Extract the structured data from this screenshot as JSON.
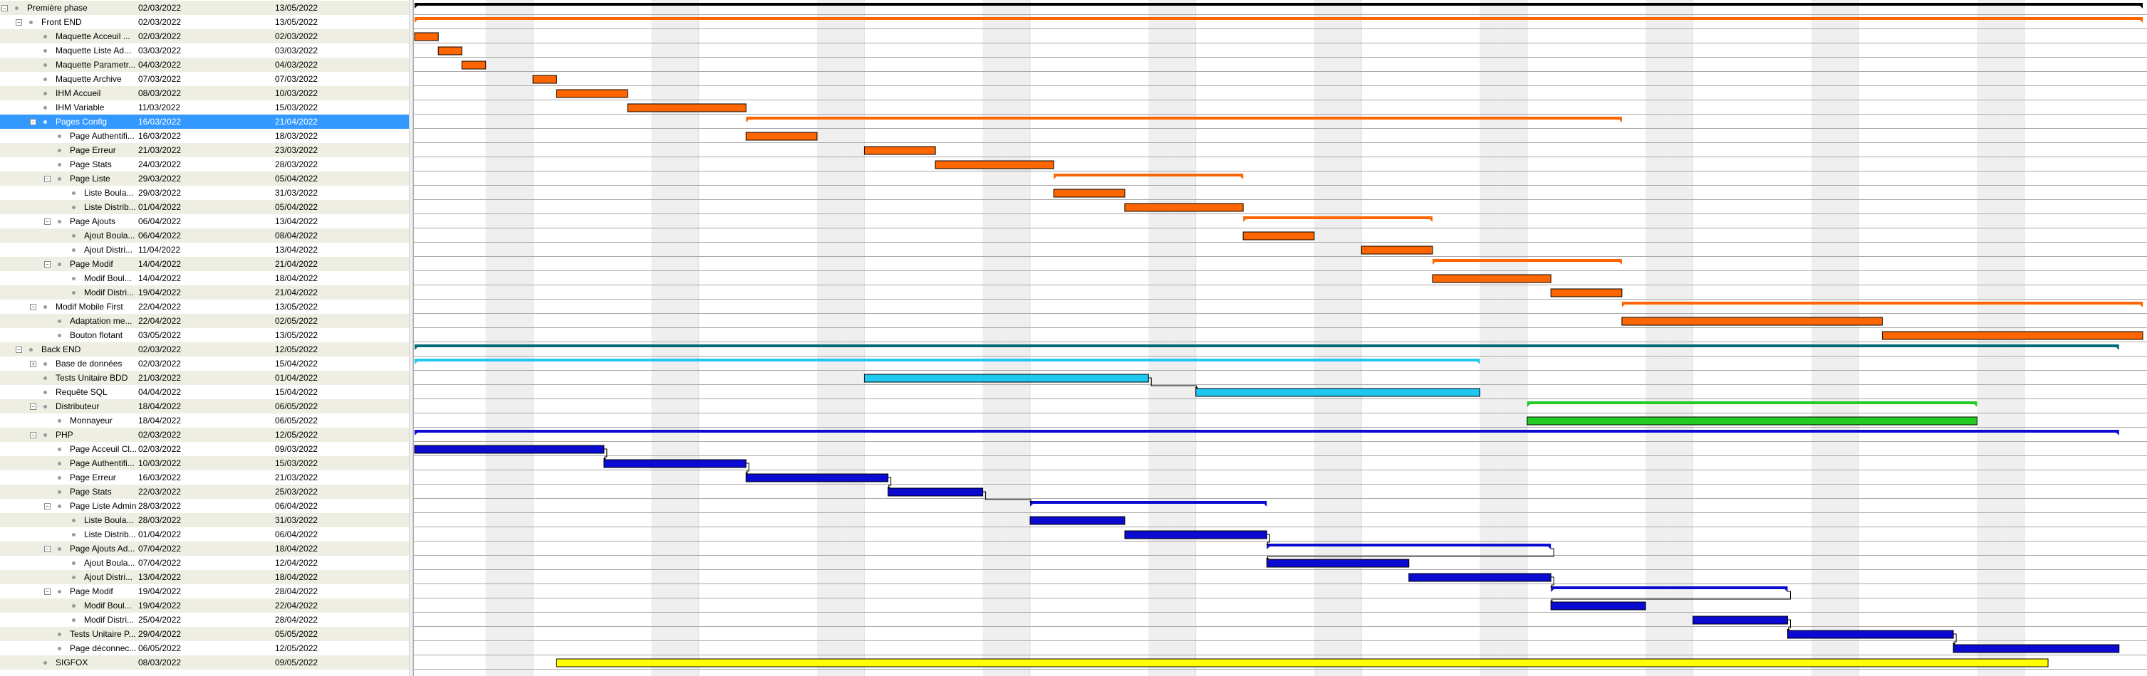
{
  "chart_data": {
    "type": "gantt",
    "timeline": {
      "start": "2022-03-02",
      "end": "2022-05-13"
    },
    "colors": {
      "frontend": "#ff6600",
      "backend_summary": "#006b75",
      "database": "#1ec8f0",
      "distributeur": "#22cc22",
      "php": "#0a0ad0",
      "sigfox": "#ffff00",
      "project_summary": "#000000",
      "selection": "#3399ff"
    },
    "tasks": [
      {
        "name": "Première phase",
        "start": "02/03/2022",
        "end": "13/05/2022",
        "level": 0,
        "toggle": "-",
        "type": "summary",
        "color": "project_summary"
      },
      {
        "name": "Front END",
        "start": "02/03/2022",
        "end": "13/05/2022",
        "level": 1,
        "toggle": "-",
        "type": "summary",
        "color": "frontend"
      },
      {
        "name": "Maquette Acceuil ...",
        "start": "02/03/2022",
        "end": "02/03/2022",
        "level": 2,
        "type": "task",
        "color": "frontend"
      },
      {
        "name": "Maquette Liste Ad...",
        "start": "03/03/2022",
        "end": "03/03/2022",
        "level": 2,
        "type": "task",
        "color": "frontend"
      },
      {
        "name": "Maquette Parametr...",
        "start": "04/03/2022",
        "end": "04/03/2022",
        "level": 2,
        "type": "task",
        "color": "frontend"
      },
      {
        "name": "Maquette Archive",
        "start": "07/03/2022",
        "end": "07/03/2022",
        "level": 2,
        "type": "task",
        "color": "frontend"
      },
      {
        "name": "IHM Accueil",
        "start": "08/03/2022",
        "end": "10/03/2022",
        "level": 2,
        "type": "task",
        "color": "frontend"
      },
      {
        "name": "IHM Variable",
        "start": "11/03/2022",
        "end": "15/03/2022",
        "level": 2,
        "type": "task",
        "color": "frontend"
      },
      {
        "name": "Pages Config",
        "start": "16/03/2022",
        "end": "21/04/2022",
        "level": 2,
        "toggle": "-",
        "type": "summary",
        "color": "frontend",
        "selected": true
      },
      {
        "name": "Page Authentifi...",
        "start": "16/03/2022",
        "end": "18/03/2022",
        "level": 3,
        "type": "task",
        "color": "frontend"
      },
      {
        "name": "Page Erreur",
        "start": "21/03/2022",
        "end": "23/03/2022",
        "level": 3,
        "type": "task",
        "color": "frontend"
      },
      {
        "name": "Page Stats",
        "start": "24/03/2022",
        "end": "28/03/2022",
        "level": 3,
        "type": "task",
        "color": "frontend"
      },
      {
        "name": "Page Liste",
        "start": "29/03/2022",
        "end": "05/04/2022",
        "level": 3,
        "toggle": "-",
        "type": "summary",
        "color": "frontend"
      },
      {
        "name": "Liste Boula...",
        "start": "29/03/2022",
        "end": "31/03/2022",
        "level": 4,
        "type": "task",
        "color": "frontend"
      },
      {
        "name": "Liste Distrib...",
        "start": "01/04/2022",
        "end": "05/04/2022",
        "level": 4,
        "type": "task",
        "color": "frontend"
      },
      {
        "name": "Page Ajouts",
        "start": "06/04/2022",
        "end": "13/04/2022",
        "level": 3,
        "toggle": "-",
        "type": "summary",
        "color": "frontend"
      },
      {
        "name": "Ajout Boula...",
        "start": "06/04/2022",
        "end": "08/04/2022",
        "level": 4,
        "type": "task",
        "color": "frontend"
      },
      {
        "name": "Ajout Distri...",
        "start": "11/04/2022",
        "end": "13/04/2022",
        "level": 4,
        "type": "task",
        "color": "frontend"
      },
      {
        "name": "Page Modif",
        "start": "14/04/2022",
        "end": "21/04/2022",
        "level": 3,
        "toggle": "-",
        "type": "summary",
        "color": "frontend"
      },
      {
        "name": "Modif Boul...",
        "start": "14/04/2022",
        "end": "18/04/2022",
        "level": 4,
        "type": "task",
        "color": "frontend"
      },
      {
        "name": "Modif Distri...",
        "start": "19/04/2022",
        "end": "21/04/2022",
        "level": 4,
        "type": "task",
        "color": "frontend"
      },
      {
        "name": "Modif Mobile First",
        "start": "22/04/2022",
        "end": "13/05/2022",
        "level": 2,
        "toggle": "-",
        "type": "summary",
        "color": "frontend"
      },
      {
        "name": "Adaptation me...",
        "start": "22/04/2022",
        "end": "02/05/2022",
        "level": 3,
        "type": "task",
        "color": "frontend"
      },
      {
        "name": "Bouton flotant",
        "start": "03/05/2022",
        "end": "13/05/2022",
        "level": 3,
        "type": "task",
        "color": "frontend"
      },
      {
        "name": "Back END",
        "start": "02/03/2022",
        "end": "12/05/2022",
        "level": 1,
        "toggle": "-",
        "type": "summary",
        "color": "backend_summary"
      },
      {
        "name": "Base de données",
        "start": "02/03/2022",
        "end": "15/04/2022",
        "level": 2,
        "toggle": "+",
        "type": "summary",
        "color": "database"
      },
      {
        "name": "Tests Unitaire BDD",
        "start": "21/03/2022",
        "end": "01/04/2022",
        "level": 2,
        "type": "task",
        "color": "database"
      },
      {
        "name": "Requête SQL",
        "start": "04/04/2022",
        "end": "15/04/2022",
        "level": 2,
        "type": "task",
        "color": "database"
      },
      {
        "name": "Distributeur",
        "start": "18/04/2022",
        "end": "06/05/2022",
        "level": 2,
        "toggle": "-",
        "type": "summary",
        "color": "distributeur"
      },
      {
        "name": "Monnayeur",
        "start": "18/04/2022",
        "end": "06/05/2022",
        "level": 3,
        "type": "task",
        "color": "distributeur"
      },
      {
        "name": "PHP",
        "start": "02/03/2022",
        "end": "12/05/2022",
        "level": 2,
        "toggle": "-",
        "type": "summary",
        "color": "php"
      },
      {
        "name": "Page Acceuil Cl...",
        "start": "02/03/2022",
        "end": "09/03/2022",
        "level": 3,
        "type": "task",
        "color": "php"
      },
      {
        "name": "Page Authentifi...",
        "start": "10/03/2022",
        "end": "15/03/2022",
        "level": 3,
        "type": "task",
        "color": "php"
      },
      {
        "name": "Page Erreur",
        "start": "16/03/2022",
        "end": "21/03/2022",
        "level": 3,
        "type": "task",
        "color": "php"
      },
      {
        "name": "Page Stats",
        "start": "22/03/2022",
        "end": "25/03/2022",
        "level": 3,
        "type": "task",
        "color": "php"
      },
      {
        "name": "Page Liste Admin",
        "start": "28/03/2022",
        "end": "06/04/2022",
        "level": 3,
        "toggle": "-",
        "type": "summary",
        "color": "php"
      },
      {
        "name": "Liste Boula...",
        "start": "28/03/2022",
        "end": "31/03/2022",
        "level": 4,
        "type": "task",
        "color": "php"
      },
      {
        "name": "Liste Distrib...",
        "start": "01/04/2022",
        "end": "06/04/2022",
        "level": 4,
        "type": "task",
        "color": "php"
      },
      {
        "name": "Page Ajouts Ad...",
        "start": "07/04/2022",
        "end": "18/04/2022",
        "level": 3,
        "toggle": "-",
        "type": "summary",
        "color": "php"
      },
      {
        "name": "Ajout Boula...",
        "start": "07/04/2022",
        "end": "12/04/2022",
        "level": 4,
        "type": "task",
        "color": "php"
      },
      {
        "name": "Ajout Distri...",
        "start": "13/04/2022",
        "end": "18/04/2022",
        "level": 4,
        "type": "task",
        "color": "php"
      },
      {
        "name": "Page Modif",
        "start": "19/04/2022",
        "end": "28/04/2022",
        "level": 3,
        "toggle": "-",
        "type": "summary",
        "color": "php"
      },
      {
        "name": "Modif Boul...",
        "start": "19/04/2022",
        "end": "22/04/2022",
        "level": 4,
        "type": "task",
        "color": "php"
      },
      {
        "name": "Modif Distri...",
        "start": "25/04/2022",
        "end": "28/04/2022",
        "level": 4,
        "type": "task",
        "color": "php"
      },
      {
        "name": "Tests Unitaire P...",
        "start": "29/04/2022",
        "end": "05/05/2022",
        "level": 3,
        "type": "task",
        "color": "php"
      },
      {
        "name": "Page déconnec...",
        "start": "06/05/2022",
        "end": "12/05/2022",
        "level": 3,
        "type": "task",
        "color": "php"
      },
      {
        "name": "SIGFOX",
        "start": "08/03/2022",
        "end": "09/05/2022",
        "level": 2,
        "type": "task",
        "color": "sigfox"
      }
    ],
    "dependencies": [
      [
        "Tests Unitaire BDD",
        "Requête SQL"
      ],
      [
        31,
        32
      ],
      [
        32,
        33
      ],
      [
        33,
        34
      ],
      [
        34,
        35
      ],
      [
        37,
        38
      ],
      [
        38,
        39
      ],
      [
        40,
        41
      ],
      [
        41,
        42
      ],
      [
        43,
        44
      ],
      [
        44,
        45
      ]
    ]
  }
}
